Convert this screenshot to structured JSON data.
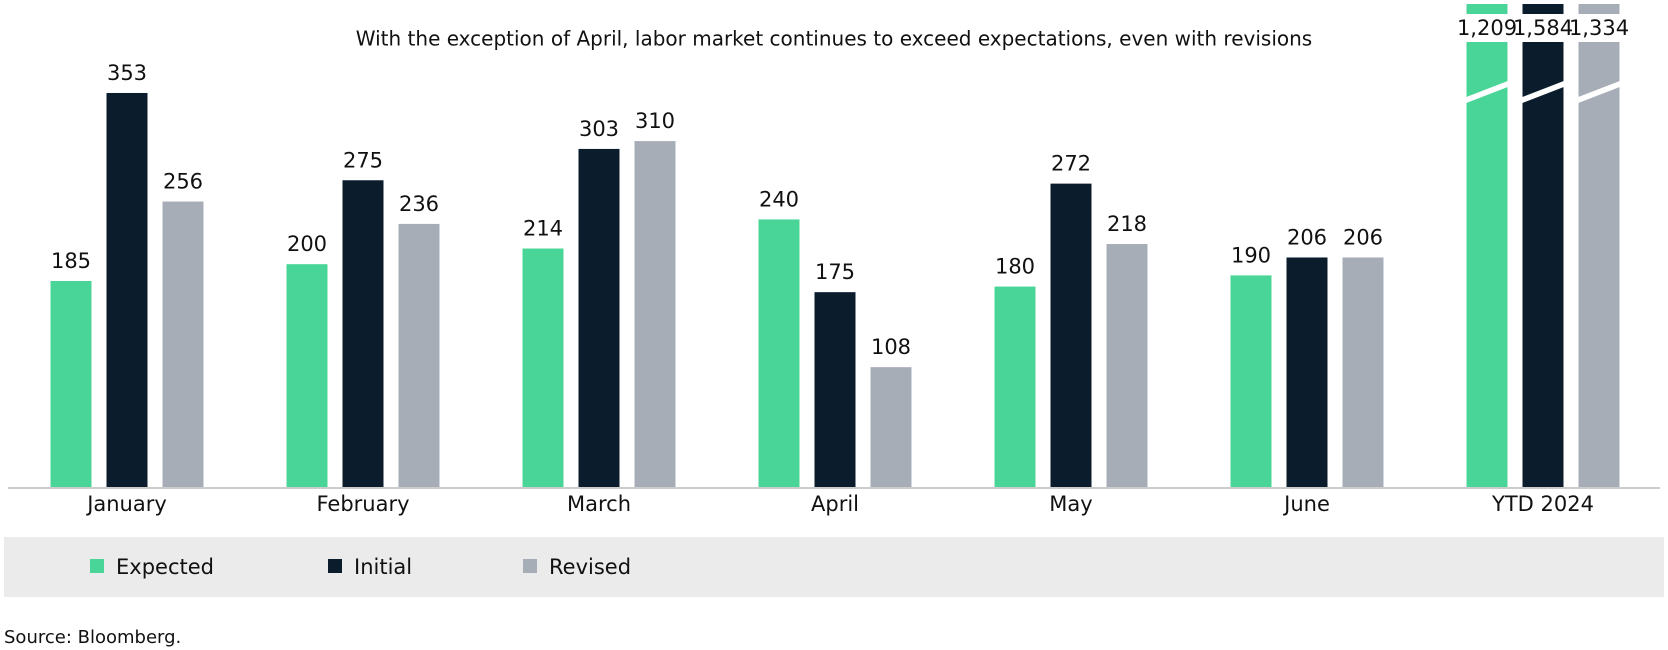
{
  "chart_data": {
    "type": "bar",
    "title": "With the exception of April, labor market continues to exceed expectations, even with revisions",
    "categories": [
      "January",
      "February",
      "March",
      "April",
      "May",
      "June",
      "YTD 2024"
    ],
    "series": [
      {
        "name": "Expected",
        "color": "#48d597",
        "values": [
          185,
          200,
          214,
          240,
          180,
          190,
          1209
        ],
        "value_labels": [
          "185",
          "200",
          "214",
          "240",
          "180",
          "190",
          "1,209"
        ]
      },
      {
        "name": "Initial",
        "color": "#0b1c2c",
        "values": [
          353,
          275,
          303,
          175,
          272,
          206,
          1584
        ],
        "value_labels": [
          "353",
          "275",
          "303",
          "175",
          "272",
          "206",
          "1,584"
        ]
      },
      {
        "name": "Revised",
        "color": "#a7adb7",
        "values": [
          256,
          236,
          310,
          108,
          218,
          206,
          1334
        ],
        "value_labels": [
          "256",
          "236",
          "310",
          "108",
          "218",
          "206",
          "1,334"
        ]
      }
    ],
    "ylim": [
      0,
      420
    ],
    "source": "Source: Bloomberg."
  }
}
